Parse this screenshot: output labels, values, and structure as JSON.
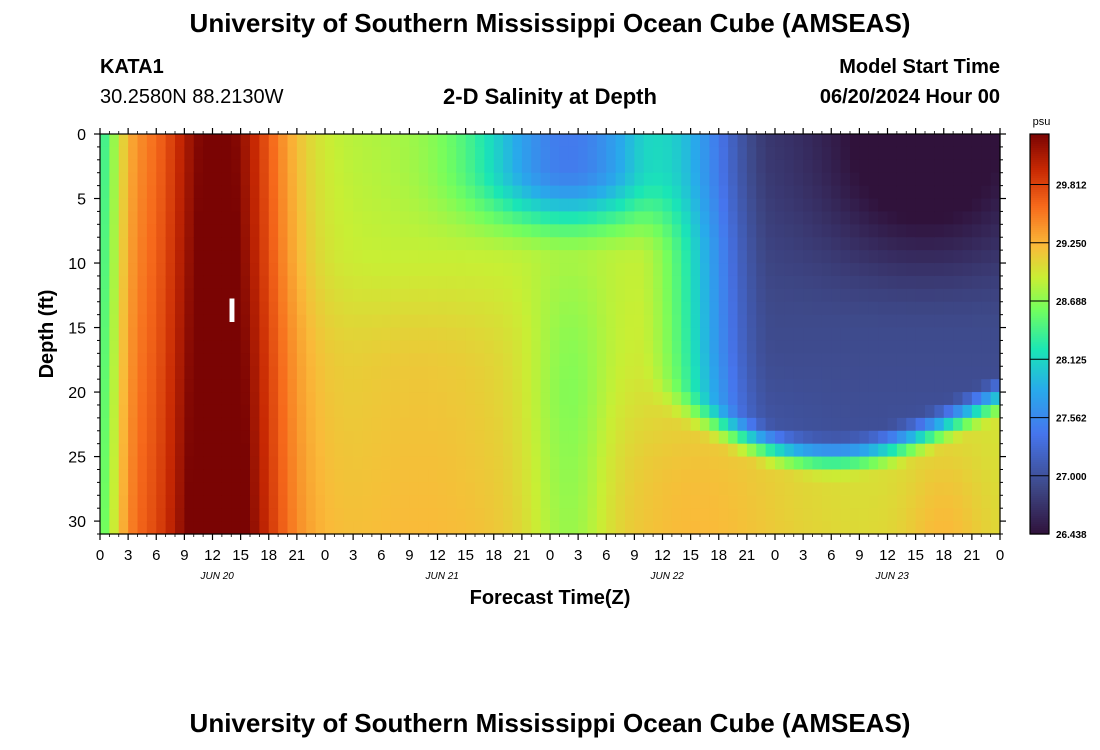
{
  "header": {
    "title": "University of Southern Mississippi Ocean Cube (AMSEAS)",
    "station": "KATA1",
    "coordinates": "30.2580N  88.2130W",
    "subtitle": "2-D Salinity at Depth",
    "model_start_label": "Model Start Time",
    "model_start_value": "06/20/2024 Hour 00"
  },
  "footer": {
    "title": "University of Southern Mississippi Ocean Cube (AMSEAS)"
  },
  "chart_data": {
    "type": "heatmap",
    "title": "2-D Salinity at Depth",
    "xlabel": "Forecast Time(Z)",
    "ylabel": "Depth (ft)",
    "x_range_hours": [
      0,
      96
    ],
    "y_range_ft": [
      0,
      31
    ],
    "y_ticks": [
      0,
      5,
      10,
      15,
      20,
      25,
      30
    ],
    "x_tick_labels": [
      "0",
      "3",
      "6",
      "9",
      "12",
      "15",
      "18",
      "21",
      "0",
      "3",
      "6",
      "9",
      "12",
      "15",
      "18",
      "21",
      "0",
      "3",
      "6",
      "9",
      "12",
      "15",
      "18",
      "21",
      "0",
      "3",
      "6",
      "9",
      "12",
      "15",
      "18",
      "21",
      "0"
    ],
    "day_labels": [
      "JUN 20",
      "JUN 21",
      "JUN 22",
      "JUN 23"
    ],
    "annotation": "I",
    "colorbar": {
      "unit": "psu",
      "min": 26.438,
      "max": 30.3,
      "tick_values": [
        "29.812",
        "29.250",
        "28.688",
        "28.125",
        "27.562",
        "27.000",
        "26.438"
      ]
    }
  }
}
